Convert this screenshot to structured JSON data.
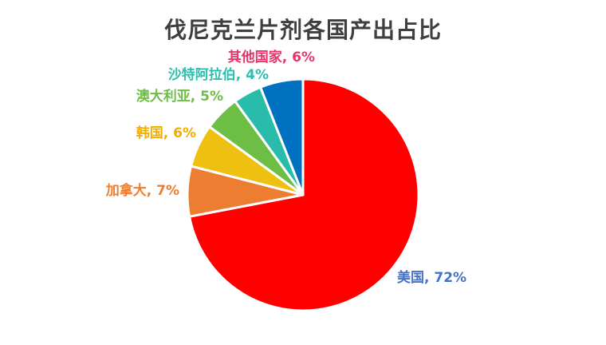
{
  "page": {
    "background": "#ffffff"
  },
  "chart_data": {
    "type": "pie",
    "title": "伐尼克兰片剂各国产出占比",
    "title_color": "#3f3f3f",
    "categories": [
      "美国",
      "加拿大",
      "韩国",
      "澳大利亚",
      "沙特阿拉伯",
      "其他国家"
    ],
    "category_slugs": [
      "usa",
      "canada",
      "korea",
      "australia",
      "saudi-arabia",
      "others"
    ],
    "values": [
      72,
      7,
      6,
      5,
      4,
      6
    ],
    "unit": "%",
    "slice_colors": [
      "#FE0000",
      "#ED7D31",
      "#EEC011",
      "#6CBE44",
      "#2ABCAA",
      "#0070C0"
    ],
    "slice_border_color": "#FFFFFF",
    "start_angle_deg": 0,
    "direction": "clockwise",
    "legend": "none",
    "labels": [
      {
        "text": "美国, 72%",
        "color": "#4472C4"
      },
      {
        "text": "加拿大, 7%",
        "color": "#ED7D31"
      },
      {
        "text": "韩国, 6%",
        "color": "#F0AF00"
      },
      {
        "text": "澳大利亚, 5%",
        "color": "#6CBE44"
      },
      {
        "text": "沙特阿拉伯, 4%",
        "color": "#2BBFAF"
      },
      {
        "text": "其他国家, 6%",
        "color": "#E8336B"
      }
    ]
  }
}
